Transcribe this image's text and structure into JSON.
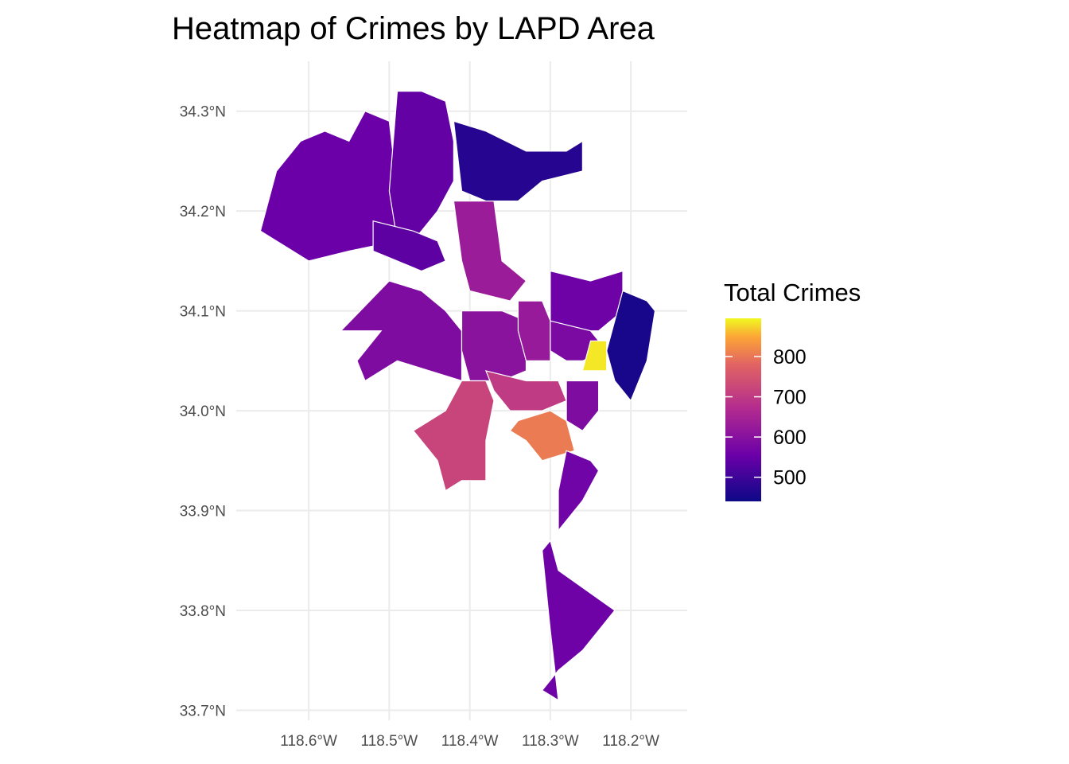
{
  "chart_data": {
    "type": "heatmap",
    "title": "Heatmap of Crimes by LAPD Area",
    "legend": {
      "title": "Total Crimes",
      "placement": "right",
      "ticks": [
        800,
        700,
        600,
        500
      ],
      "range": [
        440,
        895
      ]
    },
    "x_axis": {
      "lim": [
        -118.69,
        -118.13
      ],
      "ticks": [
        -118.6,
        -118.5,
        -118.4,
        -118.3,
        -118.2
      ],
      "tick_labels": [
        "118.6°W",
        "118.5°W",
        "118.4°W",
        "118.3°W",
        "118.2°W"
      ]
    },
    "y_axis": {
      "lim": [
        33.69,
        34.35
      ],
      "ticks": [
        34.3,
        34.2,
        34.1,
        34.0,
        33.9,
        33.8,
        33.7
      ],
      "tick_labels": [
        "34.3°N",
        "34.2°N",
        "34.1°N",
        "34.0°N",
        "33.9°N",
        "33.8°N",
        "33.7°N"
      ]
    },
    "grid": true,
    "areas": [
      {
        "value": 555,
        "polygon": [
          [
            -118.64,
            34.24
          ],
          [
            -118.61,
            34.27
          ],
          [
            -118.58,
            34.28
          ],
          [
            -118.55,
            34.27
          ],
          [
            -118.53,
            34.3
          ],
          [
            -118.5,
            34.29
          ],
          [
            -118.49,
            34.22
          ],
          [
            -118.49,
            34.17
          ],
          [
            -118.55,
            34.16
          ],
          [
            -118.6,
            34.15
          ],
          [
            -118.66,
            34.18
          ],
          [
            -118.64,
            34.24
          ]
        ]
      },
      {
        "value": 545,
        "polygon": [
          [
            -118.49,
            34.32
          ],
          [
            -118.46,
            34.32
          ],
          [
            -118.43,
            34.31
          ],
          [
            -118.42,
            34.27
          ],
          [
            -118.42,
            34.23
          ],
          [
            -118.44,
            34.2
          ],
          [
            -118.47,
            34.17
          ],
          [
            -118.49,
            34.17
          ],
          [
            -118.5,
            34.22
          ],
          [
            -118.49,
            34.32
          ]
        ]
      },
      {
        "value": 538,
        "polygon": [
          [
            -118.52,
            34.19
          ],
          [
            -118.47,
            34.18
          ],
          [
            -118.44,
            34.17
          ],
          [
            -118.43,
            34.15
          ],
          [
            -118.46,
            34.14
          ],
          [
            -118.49,
            34.15
          ],
          [
            -118.52,
            34.16
          ],
          [
            -118.52,
            34.19
          ]
        ]
      },
      {
        "value": 470,
        "polygon": [
          [
            -118.42,
            34.29
          ],
          [
            -118.38,
            34.28
          ],
          [
            -118.33,
            34.26
          ],
          [
            -118.28,
            34.26
          ],
          [
            -118.26,
            34.27
          ],
          [
            -118.26,
            34.24
          ],
          [
            -118.31,
            34.23
          ],
          [
            -118.34,
            34.21
          ],
          [
            -118.38,
            34.21
          ],
          [
            -118.41,
            34.22
          ],
          [
            -118.42,
            34.29
          ]
        ]
      },
      {
        "value": 630,
        "polygon": [
          [
            -118.42,
            34.21
          ],
          [
            -118.37,
            34.21
          ],
          [
            -118.36,
            34.15
          ],
          [
            -118.33,
            34.13
          ],
          [
            -118.35,
            34.11
          ],
          [
            -118.4,
            34.12
          ],
          [
            -118.41,
            34.15
          ],
          [
            -118.42,
            34.21
          ]
        ]
      },
      {
        "value": 585,
        "polygon": [
          [
            -118.5,
            34.13
          ],
          [
            -118.46,
            34.12
          ],
          [
            -118.43,
            34.1
          ],
          [
            -118.41,
            34.08
          ],
          [
            -118.41,
            34.03
          ],
          [
            -118.45,
            34.04
          ],
          [
            -118.49,
            34.05
          ],
          [
            -118.53,
            34.03
          ],
          [
            -118.54,
            34.05
          ],
          [
            -118.51,
            34.08
          ],
          [
            -118.56,
            34.08
          ],
          [
            -118.5,
            34.13
          ]
        ]
      },
      {
        "value": 605,
        "polygon": [
          [
            -118.41,
            34.1
          ],
          [
            -118.36,
            34.1
          ],
          [
            -118.33,
            34.09
          ],
          [
            -118.33,
            34.04
          ],
          [
            -118.36,
            34.03
          ],
          [
            -118.4,
            34.03
          ],
          [
            -118.41,
            34.06
          ],
          [
            -118.41,
            34.1
          ]
        ]
      },
      {
        "value": 625,
        "polygon": [
          [
            -118.34,
            34.11
          ],
          [
            -118.31,
            34.11
          ],
          [
            -118.3,
            34.09
          ],
          [
            -118.3,
            34.05
          ],
          [
            -118.33,
            34.05
          ],
          [
            -118.34,
            34.08
          ],
          [
            -118.34,
            34.11
          ]
        ]
      },
      {
        "value": 560,
        "polygon": [
          [
            -118.3,
            34.14
          ],
          [
            -118.25,
            34.13
          ],
          [
            -118.21,
            34.14
          ],
          [
            -118.21,
            34.1
          ],
          [
            -118.24,
            34.08
          ],
          [
            -118.27,
            34.08
          ],
          [
            -118.3,
            34.09
          ],
          [
            -118.3,
            34.14
          ]
        ]
      },
      {
        "value": 455,
        "polygon": [
          [
            -118.21,
            34.12
          ],
          [
            -118.18,
            34.11
          ],
          [
            -118.17,
            34.1
          ],
          [
            -118.18,
            34.05
          ],
          [
            -118.2,
            34.01
          ],
          [
            -118.22,
            34.03
          ],
          [
            -118.23,
            34.06
          ],
          [
            -118.21,
            34.12
          ]
        ]
      },
      {
        "value": 580,
        "polygon": [
          [
            -118.3,
            34.09
          ],
          [
            -118.25,
            34.08
          ],
          [
            -118.23,
            34.06
          ],
          [
            -118.26,
            34.05
          ],
          [
            -118.28,
            34.05
          ],
          [
            -118.3,
            34.06
          ],
          [
            -118.3,
            34.09
          ]
        ]
      },
      {
        "value": 885,
        "polygon": [
          [
            -118.25,
            34.07
          ],
          [
            -118.23,
            34.07
          ],
          [
            -118.23,
            34.04
          ],
          [
            -118.26,
            34.04
          ],
          [
            -118.25,
            34.07
          ]
        ]
      },
      {
        "value": 700,
        "polygon": [
          [
            -118.38,
            34.04
          ],
          [
            -118.33,
            34.03
          ],
          [
            -118.29,
            34.03
          ],
          [
            -118.28,
            34.01
          ],
          [
            -118.31,
            34.0
          ],
          [
            -118.35,
            34.0
          ],
          [
            -118.37,
            34.02
          ],
          [
            -118.38,
            34.04
          ]
        ]
      },
      {
        "value": 585,
        "polygon": [
          [
            -118.28,
            34.03
          ],
          [
            -118.24,
            34.03
          ],
          [
            -118.24,
            34.0
          ],
          [
            -118.26,
            33.98
          ],
          [
            -118.28,
            33.99
          ],
          [
            -118.28,
            34.03
          ]
        ]
      },
      {
        "value": 720,
        "polygon": [
          [
            -118.41,
            34.03
          ],
          [
            -118.38,
            34.03
          ],
          [
            -118.37,
            34.01
          ],
          [
            -118.38,
            33.97
          ],
          [
            -118.38,
            33.93
          ],
          [
            -118.41,
            33.93
          ],
          [
            -118.43,
            33.92
          ],
          [
            -118.44,
            33.95
          ],
          [
            -118.47,
            33.98
          ],
          [
            -118.43,
            34.0
          ],
          [
            -118.41,
            34.03
          ]
        ]
      },
      {
        "value": 805,
        "polygon": [
          [
            -118.34,
            33.99
          ],
          [
            -118.3,
            34.0
          ],
          [
            -118.28,
            33.99
          ],
          [
            -118.27,
            33.96
          ],
          [
            -118.31,
            33.95
          ],
          [
            -118.33,
            33.97
          ],
          [
            -118.35,
            33.98
          ],
          [
            -118.34,
            33.99
          ]
        ]
      },
      {
        "value": 565,
        "polygon": [
          [
            -118.28,
            33.96
          ],
          [
            -118.25,
            33.95
          ],
          [
            -118.24,
            33.94
          ],
          [
            -118.26,
            33.91
          ],
          [
            -118.29,
            33.88
          ],
          [
            -118.29,
            33.92
          ],
          [
            -118.28,
            33.96
          ]
        ]
      },
      {
        "value": 560,
        "polygon": [
          [
            -118.3,
            33.87
          ],
          [
            -118.29,
            33.84
          ],
          [
            -118.22,
            33.8
          ],
          [
            -118.26,
            33.76
          ],
          [
            -118.29,
            33.74
          ],
          [
            -118.31,
            33.72
          ],
          [
            -118.29,
            33.71
          ],
          [
            -118.3,
            33.78
          ],
          [
            -118.31,
            33.86
          ],
          [
            -118.3,
            33.87
          ]
        ]
      }
    ]
  }
}
